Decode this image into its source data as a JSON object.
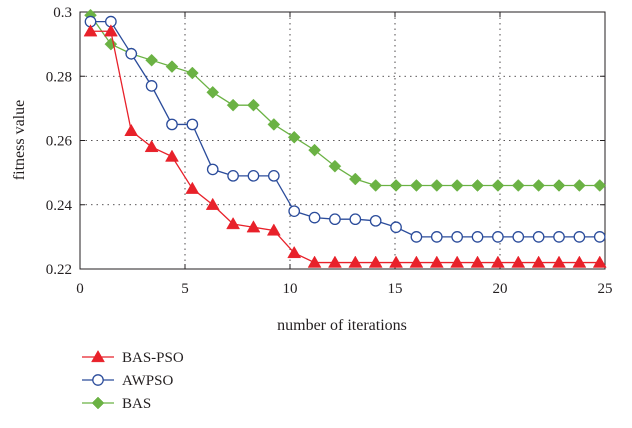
{
  "chart_data": {
    "type": "line",
    "title": "",
    "xlabel": "number of iterations",
    "ylabel": "fitness value",
    "xlim": [
      0,
      25
    ],
    "ylim": [
      0.22,
      0.3
    ],
    "xticks": [
      0,
      5,
      10,
      15,
      20,
      25
    ],
    "yticks": [
      0.22,
      0.24,
      0.26,
      0.28,
      0.3
    ],
    "xtick_labels": [
      "0",
      "5",
      "10",
      "15",
      "20",
      "25"
    ],
    "ytick_labels": [
      "0.22",
      "0.24",
      "0.26",
      "0.28",
      "0.3"
    ],
    "grid": true,
    "legend_position": "bottom-left, below plot",
    "x": [
      0.5,
      1.47,
      2.44,
      3.41,
      4.38,
      5.35,
      6.32,
      7.29,
      8.26,
      9.23,
      10.2,
      11.17,
      12.14,
      13.11,
      14.08,
      15.05,
      16.02,
      16.99,
      17.96,
      18.93,
      19.9,
      20.87,
      21.84,
      22.81,
      23.78,
      24.75
    ],
    "series": [
      {
        "name": "BAS-PSO",
        "color": "#e8212a",
        "marker": "triangle",
        "values": [
          0.294,
          0.294,
          0.263,
          0.258,
          0.255,
          0.245,
          0.24,
          0.234,
          0.233,
          0.232,
          0.225,
          0.222,
          0.222,
          0.222,
          0.222,
          0.222,
          0.222,
          0.222,
          0.222,
          0.222,
          0.222,
          0.222,
          0.222,
          0.222,
          0.222,
          0.222
        ]
      },
      {
        "name": "AWPSO",
        "color": "#2b4c9b",
        "marker": "circle",
        "values": [
          0.297,
          0.297,
          0.287,
          0.277,
          0.265,
          0.265,
          0.251,
          0.249,
          0.249,
          0.249,
          0.238,
          0.236,
          0.2355,
          0.2355,
          0.235,
          0.233,
          0.23,
          0.23,
          0.23,
          0.23,
          0.23,
          0.23,
          0.23,
          0.23,
          0.23,
          0.23
        ]
      },
      {
        "name": "BAS",
        "color": "#6bb244",
        "marker": "diamond",
        "values": [
          0.299,
          0.29,
          0.287,
          0.285,
          0.283,
          0.281,
          0.275,
          0.271,
          0.271,
          0.265,
          0.261,
          0.257,
          0.252,
          0.248,
          0.246,
          0.246,
          0.246,
          0.246,
          0.246,
          0.246,
          0.246,
          0.246,
          0.246,
          0.246,
          0.246,
          0.246
        ]
      }
    ]
  }
}
